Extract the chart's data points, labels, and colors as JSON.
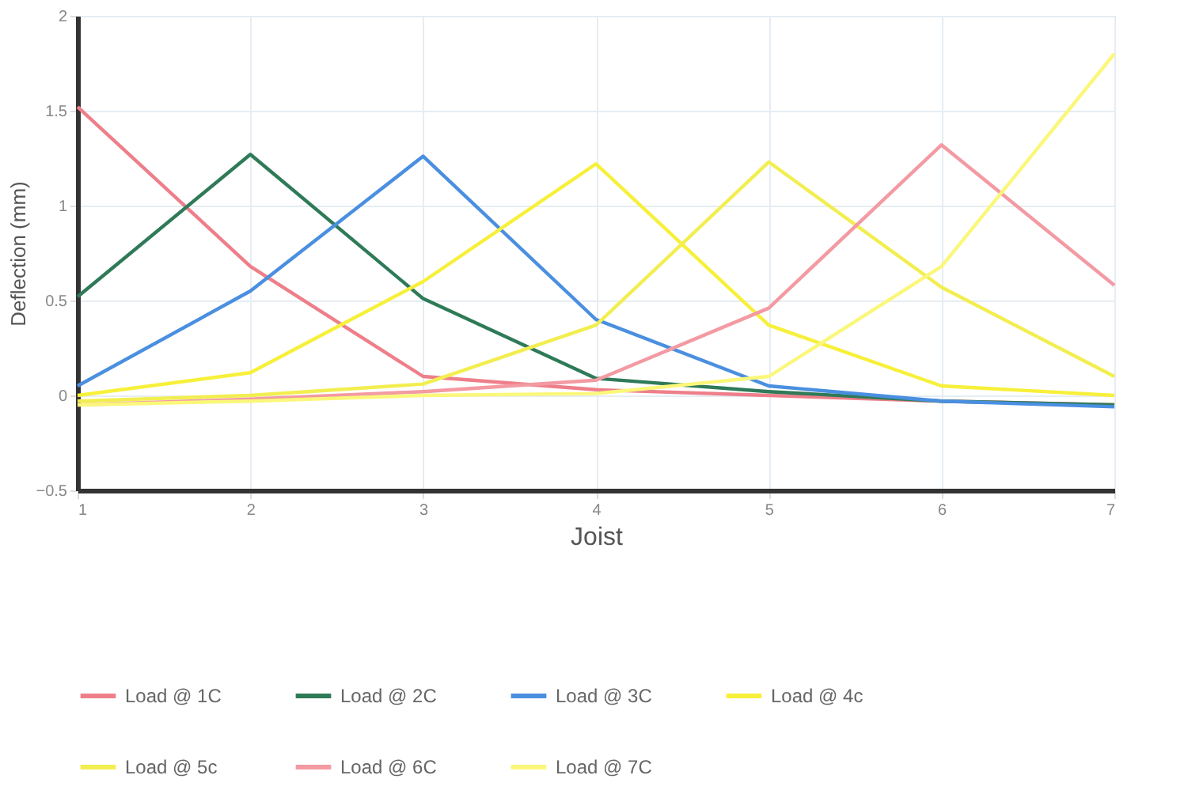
{
  "chart_data": {
    "type": "line",
    "xlabel": "Joist",
    "ylabel": "Deflection (mm)",
    "x": [
      1,
      2,
      3,
      4,
      5,
      6,
      7
    ],
    "xlim": [
      1,
      7
    ],
    "xticks": [
      1,
      2,
      3,
      4,
      5,
      6,
      7
    ],
    "ylim": [
      -0.5,
      2
    ],
    "yticks": [
      -0.5,
      0,
      0.5,
      1,
      1.5,
      2
    ],
    "grid": true,
    "legend": "bottom",
    "marker": "none",
    "line_style": "solid",
    "series": [
      {
        "name": "Load @ 1C",
        "color": "#ee7f8a",
        "values": [
          1.52,
          0.68,
          0.1,
          0.03,
          0.0,
          -0.03,
          -0.05
        ]
      },
      {
        "name": "Load @ 2C",
        "color": "#2f7a58",
        "values": [
          0.52,
          1.27,
          0.51,
          0.09,
          0.02,
          -0.03,
          -0.05
        ]
      },
      {
        "name": "Load @ 3C",
        "color": "#4a8fe0",
        "values": [
          0.05,
          0.55,
          1.26,
          0.4,
          0.05,
          -0.03,
          -0.06
        ]
      },
      {
        "name": "Load @ 4c",
        "color": "#f7f03a",
        "values": [
          0.0,
          0.12,
          0.6,
          1.22,
          0.37,
          0.05,
          0.0
        ]
      },
      {
        "name": "Load @ 5c",
        "color": "#f2ee50",
        "values": [
          -0.03,
          0.0,
          0.06,
          0.37,
          1.23,
          0.57,
          0.1
        ]
      },
      {
        "name": "Load @ 6C",
        "color": "#f39aa2",
        "values": [
          -0.05,
          -0.02,
          0.02,
          0.08,
          0.46,
          1.32,
          0.58
        ]
      },
      {
        "name": "Load @ 7C",
        "color": "#fbf77a",
        "values": [
          -0.05,
          -0.03,
          0.0,
          0.01,
          0.1,
          0.68,
          1.8
        ]
      }
    ]
  }
}
